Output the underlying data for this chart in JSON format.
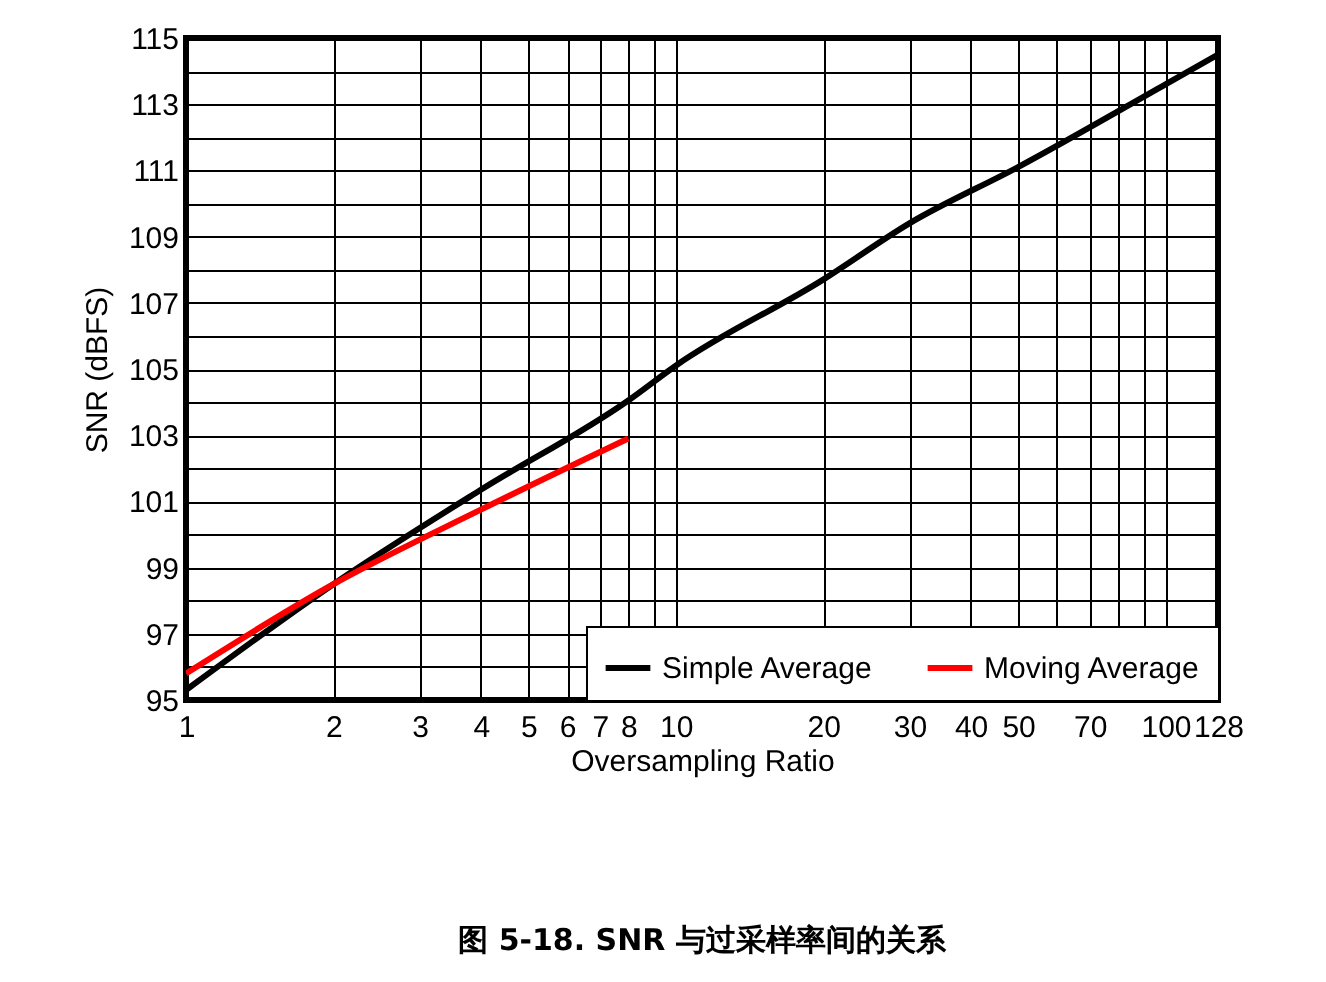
{
  "chart_data": {
    "type": "line",
    "title": "图 5-18. SNR 与过采样率间的关系",
    "xlabel": "Oversampling Ratio",
    "ylabel": "SNR (dBFS)",
    "log": "x",
    "xlim": [
      1,
      128
    ],
    "xticks": [
      1,
      2,
      3,
      4,
      5,
      6,
      7,
      8,
      {
        "value": 9,
        "label": null
      },
      10,
      20,
      30,
      40,
      50,
      {
        "value": 60,
        "label": null
      },
      70,
      {
        "value": 80,
        "label": null
      },
      {
        "value": 90,
        "label": null
      },
      100,
      128
    ],
    "ylim": [
      95,
      115
    ],
    "yticks": [
      95,
      {
        "value": 96,
        "label": null
      },
      97,
      {
        "value": 98,
        "label": null
      },
      99,
      {
        "value": 100,
        "label": null
      },
      101,
      {
        "value": 102,
        "label": null
      },
      103,
      {
        "value": 104,
        "label": null
      },
      105,
      {
        "value": 106,
        "label": null
      },
      107,
      {
        "value": 108,
        "label": null
      },
      109,
      {
        "value": 110,
        "label": null
      },
      111,
      {
        "value": 112,
        "label": null
      },
      113,
      {
        "value": 114,
        "label": null
      },
      115
    ],
    "grid": true,
    "legend": "bottom right",
    "series": [
      {
        "name": "Simple Average",
        "color": "#000000",
        "x": [
          1,
          2,
          4,
          8,
          10,
          20,
          30,
          50,
          100,
          128
        ],
        "values": [
          95.3,
          98.5,
          101.35,
          104.05,
          105.1,
          107.7,
          109.4,
          111.1,
          113.6,
          114.5
        ]
      },
      {
        "name": "Moving Average",
        "color": "#ff0000",
        "x": [
          1,
          2,
          4,
          8
        ],
        "values": [
          95.8,
          98.5,
          100.75,
          102.9
        ]
      }
    ]
  }
}
